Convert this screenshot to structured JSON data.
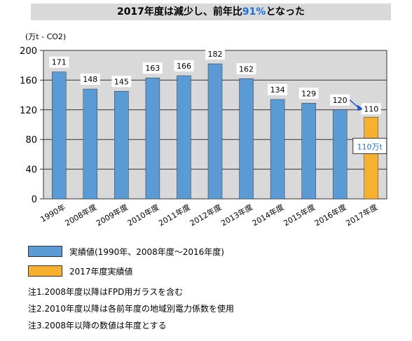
{
  "title": {
    "prefix": "2017年度は減少し、前年比",
    "highlight": "91%",
    "suffix": "となった"
  },
  "unit_label": "(万t - CO2)",
  "colors": {
    "actual": "#5b9bd5",
    "highlight_bar": "#f7b12e",
    "highlight_text": "#1f6fd6",
    "plot_bg": "#d9d9d9",
    "arrow": "#1f4fd6"
  },
  "chart_data": {
    "type": "bar",
    "categories": [
      "1990年",
      "2008年度",
      "2009年度",
      "2010年度",
      "2011年度",
      "2012年度",
      "2013年度",
      "2014年度",
      "2015年度",
      "2016年度",
      "2017年度"
    ],
    "values": [
      171,
      148,
      145,
      163,
      166,
      182,
      162,
      134,
      129,
      120,
      110
    ],
    "data_labels": [
      "171",
      "148",
      "145",
      "163",
      "166",
      "182",
      "162",
      "134",
      "129",
      "120",
      "110"
    ],
    "bar_colors": [
      "actual",
      "actual",
      "actual",
      "actual",
      "actual",
      "actual",
      "actual",
      "actual",
      "actual",
      "actual",
      "highlight_bar"
    ],
    "ylim": [
      0,
      200
    ],
    "yticks": [
      0,
      40,
      80,
      120,
      160,
      200
    ],
    "grid": true,
    "annotation": {
      "text": "110万t",
      "category": "2017年度"
    }
  },
  "legend": [
    {
      "label": "実績値(1990年、2008年度〜2016年度)",
      "color": "actual"
    },
    {
      "label": "2017年度実績値",
      "color": "highlight_bar"
    }
  ],
  "notes": [
    "注1.2008年度以降はFPD用ガラスを含む",
    "注2.2010年度以降は各前年度の地域別電力係数を使用",
    "注3.2008年以降の数値は年度とする"
  ]
}
